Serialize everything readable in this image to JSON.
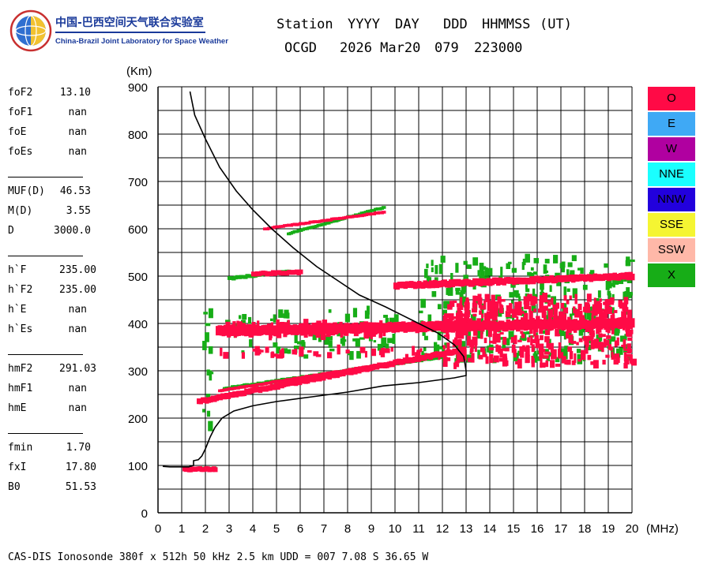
{
  "logo": {
    "cn": "中国-巴西空间天气联合实验室",
    "en": "China-Brazil Joint Laboratory for Space Weather"
  },
  "header": {
    "labels": {
      "station": "Station",
      "yyyy": "YYYY",
      "day": "DAY",
      "ddd": "DDD",
      "hhmmss": "HHMMSS",
      "ut": "(UT)"
    },
    "values": {
      "station": "OCGD",
      "date": "2026 Mar20",
      "doy": "079",
      "time": "223000"
    }
  },
  "params": [
    {
      "key": "foF2",
      "value": "13.10"
    },
    {
      "key": "foF1",
      "value": "nan"
    },
    {
      "key": "foE",
      "value": "nan"
    },
    {
      "key": "foEs",
      "value": "nan"
    },
    {
      "key": "MUF(D)",
      "value": "46.53"
    },
    {
      "key": "M(D)",
      "value": "3.55"
    },
    {
      "key": "D",
      "value": "3000.0"
    },
    {
      "key": "h`F",
      "value": "235.00"
    },
    {
      "key": "h`F2",
      "value": "235.00"
    },
    {
      "key": "h`E",
      "value": "nan"
    },
    {
      "key": "h`Es",
      "value": "nan"
    },
    {
      "key": "hmF2",
      "value": "291.03"
    },
    {
      "key": "hmF1",
      "value": "nan"
    },
    {
      "key": "hmE",
      "value": "nan"
    },
    {
      "key": "fmin",
      "value": "1.70"
    },
    {
      "key": "fxI",
      "value": "17.80"
    },
    {
      "key": "B0",
      "value": "51.53"
    }
  ],
  "legend": [
    {
      "label": "O",
      "color": "#ff0a46"
    },
    {
      "label": "E",
      "color": "#3fa9f5"
    },
    {
      "label": "W",
      "color": "#b000a0"
    },
    {
      "label": "NNE",
      "color": "#1affff"
    },
    {
      "label": "NNW",
      "color": "#2200dd"
    },
    {
      "label": "SSE",
      "color": "#f5f532"
    },
    {
      "label": "SSW",
      "color": "#ffb8a8"
    },
    {
      "label": "X",
      "color": "#17ad17"
    }
  ],
  "footer": "CAS-DIS Ionosonde 380f x 512h 50 kHz 2.5 km UDD = 007 7.08 S 36.65 W",
  "chart_data": {
    "type": "scatter",
    "ylabel": "(Km)",
    "xlabel": "(MHz)",
    "xlim": [
      0,
      20
    ],
    "ylim": [
      0,
      900
    ],
    "xticks": [
      0,
      1,
      2,
      3,
      4,
      5,
      6,
      7,
      8,
      9,
      10,
      11,
      12,
      13,
      14,
      15,
      16,
      17,
      18,
      19,
      20
    ],
    "yticks": [
      0,
      100,
      200,
      300,
      400,
      500,
      600,
      700,
      800,
      900
    ],
    "grid": true,
    "profile": {
      "name": "electron density profile",
      "points": [
        [
          1.35,
          890
        ],
        [
          1.55,
          840
        ],
        [
          2.0,
          790
        ],
        [
          2.6,
          730
        ],
        [
          3.3,
          680
        ],
        [
          4.0,
          640
        ],
        [
          4.8,
          600
        ],
        [
          5.7,
          560
        ],
        [
          6.7,
          520
        ],
        [
          7.6,
          490
        ],
        [
          8.5,
          460
        ],
        [
          9.6,
          435
        ],
        [
          10.8,
          405
        ],
        [
          11.8,
          380
        ],
        [
          12.5,
          355
        ],
        [
          12.9,
          330
        ],
        [
          13.0,
          300
        ],
        [
          13.0,
          290
        ],
        [
          12.5,
          285
        ],
        [
          11.0,
          275
        ],
        [
          9.5,
          268
        ],
        [
          8.0,
          255
        ],
        [
          6.5,
          245
        ],
        [
          5.0,
          235
        ],
        [
          4.0,
          226
        ],
        [
          3.2,
          215
        ],
        [
          2.7,
          200
        ],
        [
          2.4,
          180
        ],
        [
          2.2,
          160
        ],
        [
          2.0,
          135
        ],
        [
          1.85,
          120
        ],
        [
          1.7,
          112
        ],
        [
          1.5,
          110
        ],
        [
          1.5,
          100
        ],
        [
          1.3,
          97
        ],
        [
          0.9,
          97
        ],
        [
          0.5,
          97
        ],
        [
          0.2,
          98
        ]
      ]
    },
    "ordinary": {
      "name": "O",
      "traces": [
        {
          "from": [
            1.7,
            235
          ],
          "to": [
            12.9,
            345
          ],
          "height": 12
        },
        {
          "from": [
            2.6,
            258
          ],
          "to": [
            12.5,
            338
          ],
          "height": 6
        },
        {
          "from": [
            2.5,
            385
          ],
          "to": [
            20.0,
            400
          ],
          "height": 20
        },
        {
          "from": [
            10.0,
            480
          ],
          "to": [
            20.0,
            500
          ],
          "height": 14
        },
        {
          "from": [
            4.0,
            505
          ],
          "to": [
            6.0,
            508
          ],
          "height": 10
        },
        {
          "from": [
            4.5,
            600
          ],
          "to": [
            9.5,
            635
          ],
          "height": 6
        },
        {
          "from": [
            1.1,
            92
          ],
          "to": [
            2.4,
            92
          ],
          "height": 10
        }
      ],
      "clouds": [
        {
          "x": [
            12.0,
            20.0
          ],
          "y": [
            310,
            455
          ],
          "count": 420
        },
        {
          "x": [
            2.5,
            9.5
          ],
          "y": [
            375,
            400
          ],
          "count": 120
        },
        {
          "x": [
            2.5,
            12.5
          ],
          "y": [
            330,
            345
          ],
          "count": 40
        }
      ]
    },
    "extraordinary": {
      "name": "X",
      "traces": [
        {
          "from": [
            2.8,
            262
          ],
          "to": [
            12.0,
            330
          ],
          "height": 8
        },
        {
          "from": [
            3.0,
            495
          ],
          "to": [
            5.5,
            510
          ],
          "height": 8
        },
        {
          "from": [
            5.5,
            590
          ],
          "to": [
            9.5,
            645
          ],
          "height": 6
        },
        {
          "from": [
            1.6,
            93
          ],
          "to": [
            2.4,
            94
          ],
          "height": 6
        }
      ],
      "clouds": [
        {
          "x": [
            11.0,
            20.0
          ],
          "y": [
            320,
            540
          ],
          "count": 320
        },
        {
          "x": [
            2.5,
            10.0
          ],
          "y": [
            330,
            430
          ],
          "count": 70
        },
        {
          "x": [
            1.8,
            2.2
          ],
          "y": [
            180,
            430
          ],
          "count": 14
        }
      ]
    }
  }
}
